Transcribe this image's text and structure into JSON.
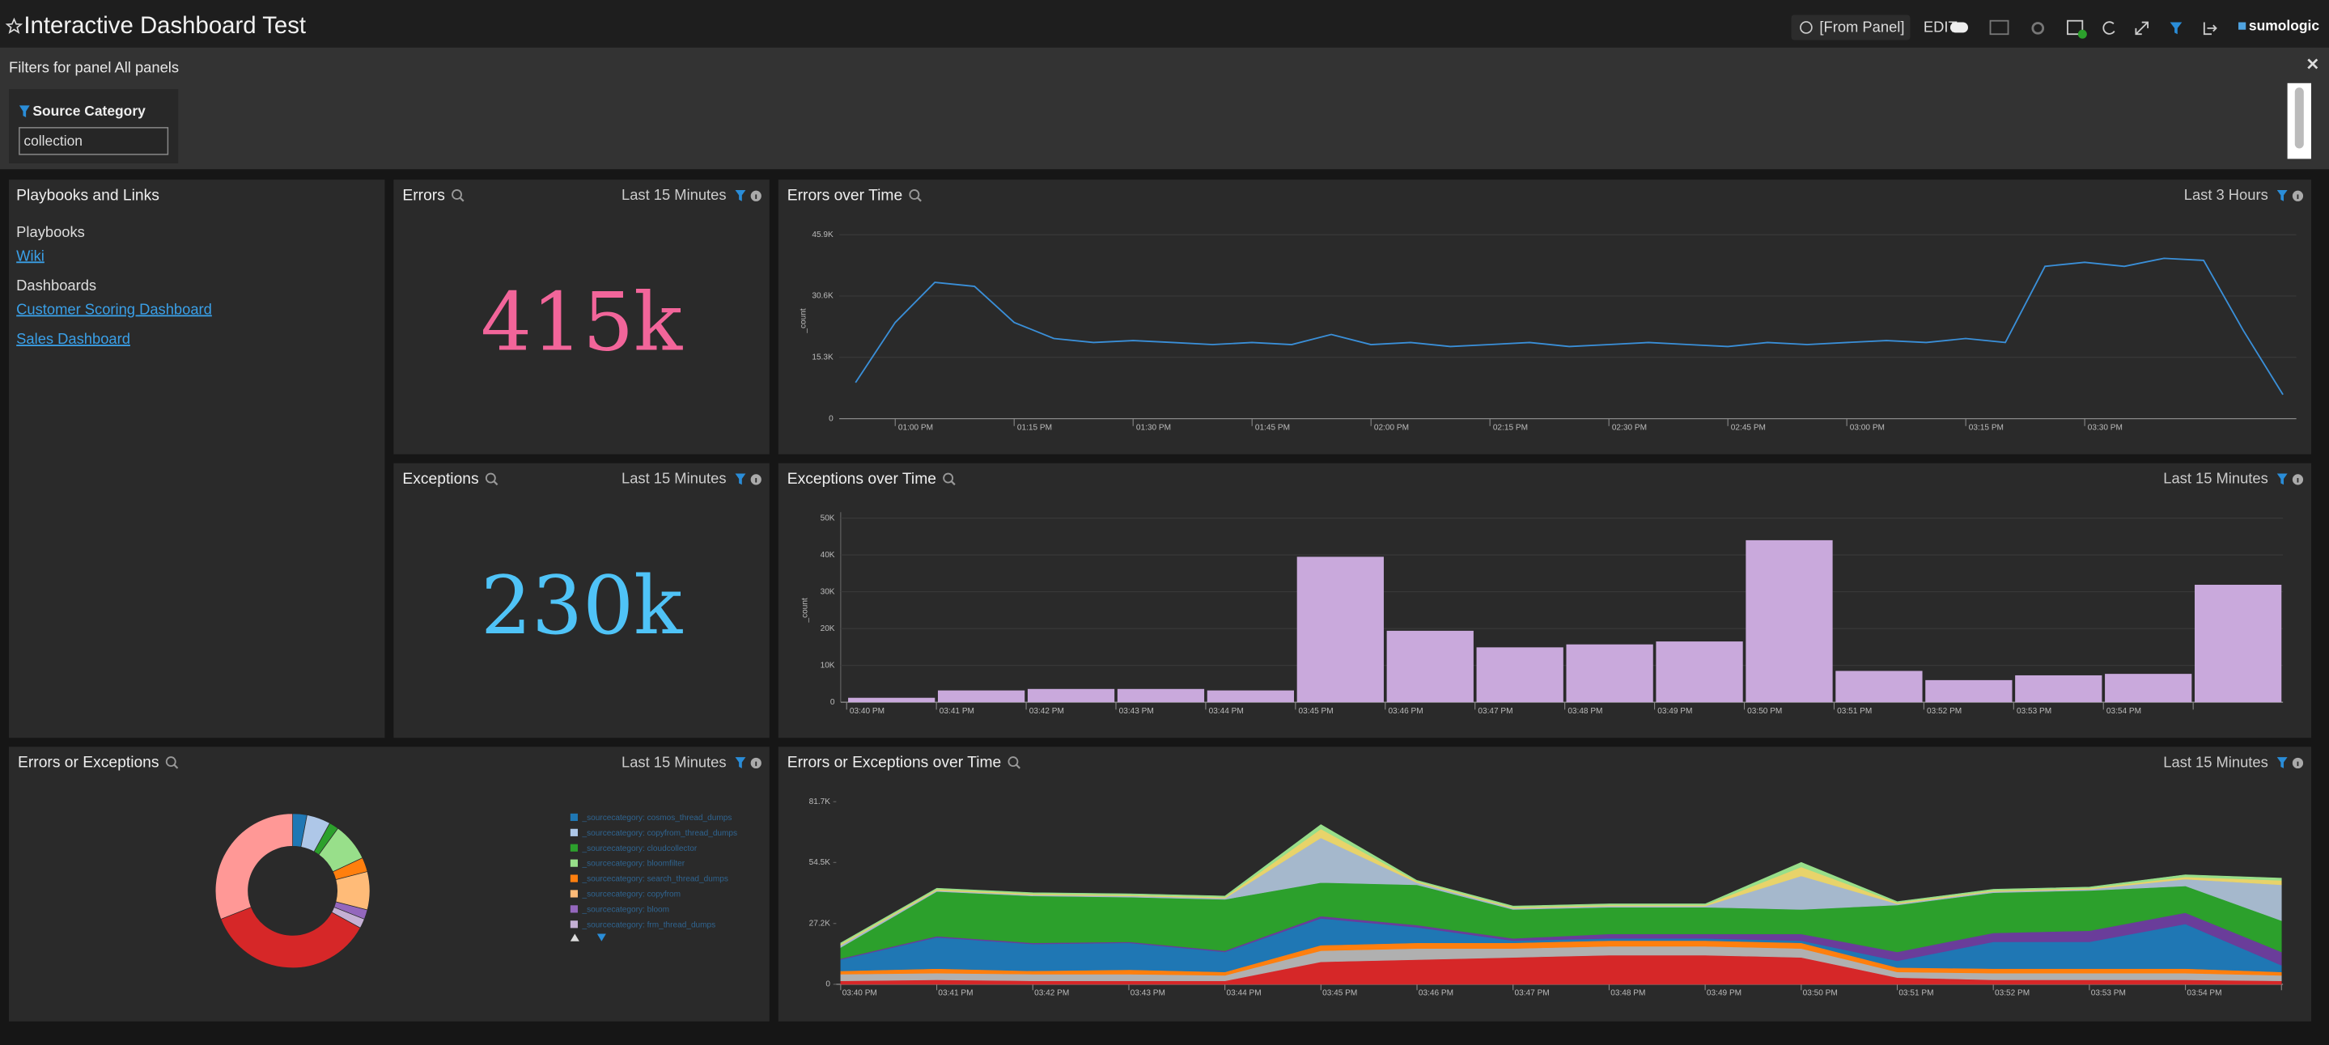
{
  "header": {
    "title": "Interactive Dashboard Test",
    "time_range": "[From Panel]",
    "edit": "EDIT",
    "brand": "sumologic"
  },
  "filters": {
    "title": "Filters for panel All panels",
    "field": "Source Category",
    "value": "collection"
  },
  "links_panel": {
    "title": "Playbooks and Links",
    "sections": [
      {
        "heading": "Playbooks",
        "links": [
          "Wiki"
        ]
      },
      {
        "heading": "Dashboards",
        "links": [
          "Customer Scoring Dashboard",
          "Sales Dashboard"
        ]
      }
    ]
  },
  "chart_data": [
    {
      "type": "single_value",
      "title": "Errors",
      "time_range": "Last 15 Minutes",
      "value_text": "415k",
      "color": "#f2659a"
    },
    {
      "type": "line",
      "title": "Errors over Time",
      "time_range": "Last 3 Hours",
      "y_label": "_count",
      "color": "#3a8fd8",
      "grid": true,
      "x": [
        "12:55 PM",
        "01:00 PM",
        "01:05 PM",
        "01:10 PM",
        "01:15 PM",
        "01:20 PM",
        "01:25 PM",
        "01:30 PM",
        "01:35 PM",
        "01:40 PM",
        "01:45 PM",
        "01:50 PM",
        "01:55 PM",
        "02:00 PM",
        "02:05 PM",
        "02:10 PM",
        "02:15 PM",
        "02:20 PM",
        "02:25 PM",
        "02:30 PM",
        "02:35 PM",
        "02:40 PM",
        "02:45 PM",
        "02:50 PM",
        "02:55 PM",
        "03:00 PM",
        "03:05 PM",
        "03:10 PM",
        "03:15 PM",
        "03:20 PM",
        "03:25 PM",
        "03:30 PM",
        "03:35 PM",
        "03:40 PM",
        "03:45 PM",
        "03:50 PM",
        "03:55 PM"
      ],
      "values": [
        9000,
        24000,
        34000,
        33000,
        24000,
        20000,
        19000,
        19500,
        19000,
        18500,
        19000,
        18500,
        21000,
        18500,
        19000,
        18000,
        18500,
        19000,
        18000,
        18500,
        19000,
        18500,
        18000,
        19000,
        18500,
        19000,
        19500,
        19000,
        20000,
        19000,
        38000,
        39000,
        38000,
        40000,
        39500,
        22000,
        6000
      ],
      "xticks": [
        "01:00 PM",
        "01:15 PM",
        "01:30 PM",
        "01:45 PM",
        "02:00 PM",
        "02:15 PM",
        "02:30 PM",
        "02:45 PM",
        "03:00 PM",
        "03:15 PM",
        "03:30 PM"
      ],
      "ylim": [
        0,
        48900
      ],
      "yticks": [
        0,
        {
          "value": 15300,
          "label": "15.3K"
        },
        {
          "value": 30600,
          "label": "30.6K"
        },
        {
          "value": 45900,
          "label": "45.9K"
        }
      ]
    },
    {
      "type": "single_value",
      "title": "Exceptions",
      "time_range": "Last 15 Minutes",
      "value_text": "230k",
      "color": "#4fc3f7"
    },
    {
      "type": "bar",
      "title": "Exceptions over Time",
      "time_range": "Last 15 Minutes",
      "y_label": "_count",
      "color": "#c9a9dc",
      "grid": true,
      "categories": [
        "03:40 PM",
        "03:41 PM",
        "03:42 PM",
        "03:43 PM",
        "03:44 PM",
        "03:45 PM",
        "03:46 PM",
        "03:47 PM",
        "03:48 PM",
        "03:49 PM",
        "03:50 PM",
        "03:51 PM",
        "03:52 PM",
        "03:53 PM",
        "03:54 PM",
        null
      ],
      "values": [
        1200,
        3200,
        3600,
        3600,
        3200,
        39500,
        19400,
        14900,
        15700,
        16500,
        44000,
        8500,
        6000,
        7300,
        7700,
        31900
      ],
      "ylim": [
        0,
        50000
      ],
      "yticks": [
        0,
        {
          "value": 10000,
          "label": "10K"
        },
        {
          "value": 20000,
          "label": "20K"
        },
        {
          "value": 30000,
          "label": "30K"
        },
        {
          "value": 40000,
          "label": "40K"
        },
        {
          "value": 50000,
          "label": "50K"
        }
      ]
    },
    {
      "type": "donut",
      "title": "Errors or Exceptions",
      "time_range": "Last 15 Minutes",
      "labels": [
        "_sourcecategory: cosmos_thread_dumps",
        "_sourcecategory: copyfrom_thread_dumps",
        "_sourcecategory: cloudcollector",
        "_sourcecategory: bloomfilter",
        "_sourcecategory: search_thread_dumps",
        "_sourcecategory: copyfrom",
        "_sourcecategory: bloom",
        "_sourcecategory: frm_thread_dumps",
        null,
        null
      ],
      "colors": [
        "#1f77b4",
        "#aec7e8",
        "#2ca02c",
        "#98df8a",
        "#ff7f0e",
        "#ffbb78",
        "#9467bd",
        "#c5b0d5",
        "#d62728",
        "#ff9896"
      ],
      "values": [
        3,
        5,
        2,
        8,
        3,
        8,
        2,
        2,
        36,
        31
      ]
    },
    {
      "type": "stacked_area",
      "title": "Errors or Exceptions over Time",
      "time_range": "Last 15 Minutes",
      "x": [
        "03:40 PM",
        "03:41 PM",
        "03:42 PM",
        "03:43 PM",
        "03:44 PM",
        "03:45 PM",
        "03:46 PM",
        "03:47 PM",
        "03:48 PM",
        "03:49 PM",
        "03:50 PM",
        "03:51 PM",
        "03:52 PM",
        "03:53 PM",
        "03:54 PM",
        null
      ],
      "ylim": [
        0,
        81700
      ],
      "yticks": [
        0,
        {
          "value": 27200,
          "label": "27.2K"
        },
        {
          "value": 54500,
          "label": "54.5K"
        },
        {
          "value": 81700,
          "label": "81.7K"
        }
      ],
      "series": [
        {
          "color": "#d62728",
          "values": [
            1500,
            2000,
            1500,
            1500,
            1500,
            10000,
            11000,
            12000,
            13000,
            13000,
            12000,
            3000,
            2000,
            2000,
            2000,
            1500
          ]
        },
        {
          "color": "#b0b0b0",
          "values": [
            3000,
            3000,
            3000,
            3000,
            2500,
            5000,
            5000,
            4000,
            4000,
            4000,
            4000,
            2500,
            3000,
            3000,
            3000,
            2500
          ]
        },
        {
          "color": "#ff7f0e",
          "values": [
            1500,
            2000,
            1500,
            2000,
            1500,
            2500,
            2500,
            2500,
            2500,
            2500,
            2500,
            2000,
            2000,
            2000,
            2000,
            1500
          ]
        },
        {
          "color": "#1f77b4",
          "values": [
            5000,
            14000,
            12000,
            12000,
            9000,
            12000,
            7000,
            1000,
            1000,
            1000,
            1000,
            3000,
            12000,
            12000,
            20000,
            3000
          ]
        },
        {
          "color": "#6a3d9a",
          "values": [
            500,
            500,
            500,
            500,
            500,
            1000,
            1000,
            1000,
            2000,
            2000,
            3000,
            4000,
            4000,
            5000,
            5000,
            6000
          ]
        },
        {
          "color": "#2ca02c",
          "values": [
            5000,
            20000,
            21000,
            20000,
            23000,
            15000,
            18000,
            13000,
            12000,
            12000,
            11000,
            21000,
            18000,
            18000,
            12000,
            14000
          ]
        },
        {
          "color": "#a5b8cc",
          "values": [
            1000,
            500,
            500,
            500,
            500,
            20000,
            1000,
            500,
            500,
            500,
            15000,
            500,
            500,
            500,
            3000,
            16000
          ]
        },
        {
          "color": "#e8d36a",
          "values": [
            500,
            500,
            500,
            500,
            500,
            4000,
            500,
            500,
            500,
            500,
            4000,
            500,
            500,
            500,
            1000,
            2000
          ]
        },
        {
          "color": "#98df8a",
          "values": [
            500,
            500,
            500,
            500,
            500,
            2000,
            500,
            500,
            500,
            500,
            2000,
            500,
            500,
            500,
            1000,
            1000
          ]
        }
      ]
    }
  ]
}
